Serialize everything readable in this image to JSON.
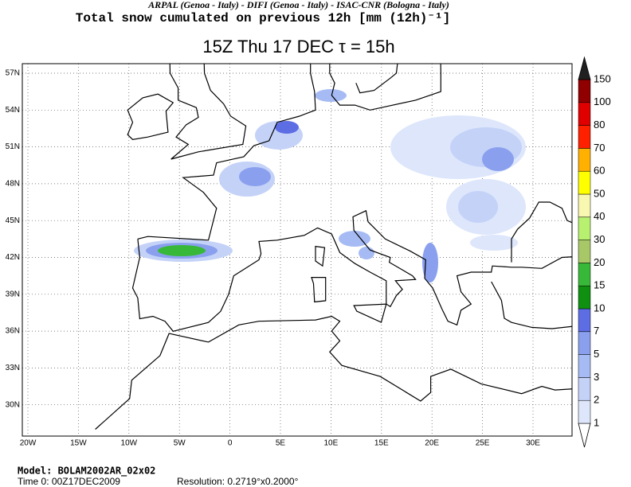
{
  "header": {
    "institutions": "ARPAL (Genoa - Italy)  -  DIFI (Genoa - Italy)  -  ISAC-CNR (Bologna - Italy)",
    "title": "Total snow cumulated on previous 12h [mm (12h)⁻¹]",
    "subtitle": "15Z Thu 17 DEC  τ = 15h"
  },
  "map": {
    "lat_labels": [
      "57N",
      "54N",
      "51N",
      "48N",
      "45N",
      "42N",
      "39N",
      "36N",
      "33N",
      "30N"
    ],
    "lon_labels": [
      "20W",
      "15W",
      "10W",
      "5W",
      "0",
      "5E",
      "10E",
      "15E",
      "20E",
      "25E",
      "30E"
    ]
  },
  "legend": {
    "levels": [
      1,
      2,
      3,
      5,
      7,
      10,
      15,
      20,
      30,
      40,
      50,
      60,
      70,
      80,
      100,
      150
    ],
    "colors": [
      "#ffffff",
      "#dde6fb",
      "#c4d2f8",
      "#a6bbf4",
      "#8aa0ee",
      "#5d6ee4",
      "#109010",
      "#38b838",
      "#a8c868",
      "#b8f070",
      "#f8f8b0",
      "#ffff00",
      "#ffb000",
      "#ff2000",
      "#e00000",
      "#900000",
      "#202020"
    ]
  },
  "footer": {
    "model": "Model: BOLAM2002AR_02x02",
    "time": "Time 0: 00Z17DEC2009",
    "resolution": "Resolution: 0.2719°x0.2000°"
  }
}
